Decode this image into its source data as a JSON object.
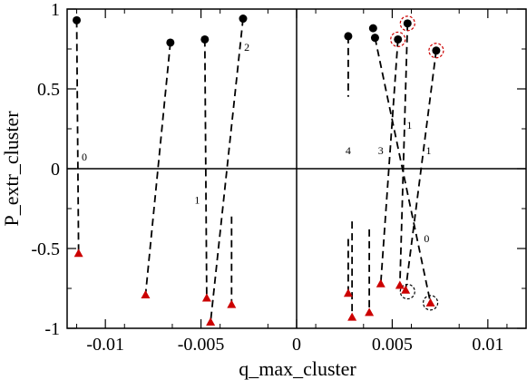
{
  "chart_data": {
    "type": "scatter",
    "title": "",
    "xlabel": "q_max_cluster",
    "ylabel": "P_extr_cluster",
    "xlim": [
      -0.012,
      0.012
    ],
    "ylim": [
      -1,
      1
    ],
    "xticks": [
      -0.01,
      -0.005,
      0,
      0.005,
      0.01
    ],
    "xtick_labels": [
      "-0.01",
      "-0.005",
      "0",
      "0.005",
      "0.01"
    ],
    "yticks": [
      -1,
      -0.5,
      0,
      0.5,
      1
    ],
    "ytick_labels": [
      "-1",
      "-0.5",
      "0",
      "0.5",
      "1"
    ],
    "grid": false,
    "zero_lines": true,
    "colors": {
      "circle": "#000000",
      "triangle": "#cc0000",
      "dashed_line": "#000000",
      "highlight_red": "#cc0000",
      "highlight_black": "#000000"
    },
    "pairs": [
      {
        "from": [
          -0.0115,
          0.93
        ],
        "to": [
          -0.0114,
          -0.53
        ]
      },
      {
        "from": [
          -0.0066,
          0.79
        ],
        "to": [
          -0.0079,
          -0.79
        ]
      },
      {
        "from": [
          -0.0048,
          0.81
        ],
        "to": [
          -0.0047,
          -0.81
        ]
      },
      {
        "from": [
          -0.0028,
          0.94
        ],
        "to": [
          -0.0045,
          -0.96
        ]
      },
      {
        "from": null,
        "to": [
          -0.0034,
          -0.85
        ],
        "line_to_y": -0.3
      },
      {
        "from": [
          0.0027,
          0.83
        ],
        "to": [
          0.0027,
          -0.78
        ],
        "line_from_y": 0.45,
        "line_to_y": -0.44
      },
      {
        "from": [
          0.004,
          0.88
        ],
        "to": [
          0.0029,
          -0.93
        ],
        "line_to_y": -0.33
      },
      {
        "from": [
          0.0041,
          0.82
        ],
        "to": [
          0.0038,
          -0.9
        ],
        "line_to_y": -0.38
      },
      {
        "from": [
          0.0053,
          0.81
        ],
        "to": [
          0.0044,
          -0.72
        ]
      },
      {
        "from": [
          0.0058,
          0.91
        ],
        "to": [
          0.0054,
          -0.73
        ]
      },
      {
        "from": [
          0.0073,
          0.74
        ],
        "to": [
          0.0057,
          -0.76
        ]
      },
      {
        "from": null,
        "to": [
          0.007,
          -0.84
        ],
        "line_from": [
          0.0041,
          0.82
        ]
      }
    ],
    "highlight_red_circles": [
      [
        0.0053,
        0.81
      ],
      [
        0.0058,
        0.91
      ],
      [
        0.0073,
        0.74
      ]
    ],
    "highlight_black_circles": [
      [
        0.0058,
        -0.77
      ],
      [
        0.007,
        -0.84
      ]
    ],
    "annotations": [
      {
        "text": "0",
        "x": -0.0111,
        "y": 0.05
      },
      {
        "text": "2",
        "x": -0.0026,
        "y": 0.74
      },
      {
        "text": "1",
        "x": -0.0052,
        "y": -0.22
      },
      {
        "text": "4",
        "x": 0.0027,
        "y": 0.09
      },
      {
        "text": "3",
        "x": 0.0044,
        "y": 0.09
      },
      {
        "text": "1",
        "x": 0.0059,
        "y": 0.25
      },
      {
        "text": "1",
        "x": 0.0069,
        "y": 0.09
      },
      {
        "text": "0",
        "x": 0.0068,
        "y": -0.46
      }
    ]
  }
}
